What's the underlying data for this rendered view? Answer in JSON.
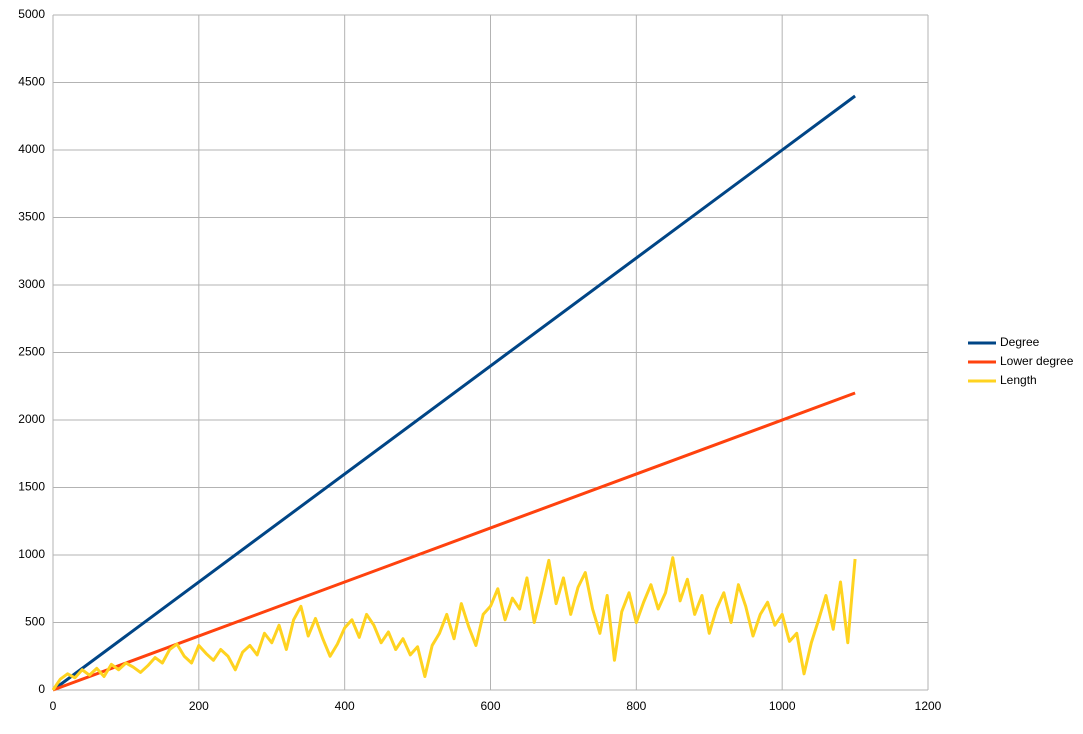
{
  "chart_data": {
    "type": "line",
    "xlim": [
      0,
      1200
    ],
    "xticks": [
      0,
      200,
      400,
      600,
      800,
      1000,
      1200
    ],
    "ylim": [
      0,
      5000
    ],
    "yticks": [
      0,
      500,
      1000,
      1500,
      2000,
      2500,
      3000,
      3500,
      4000,
      4500,
      5000
    ],
    "grid": true,
    "legend": "right",
    "series": [
      {
        "name": "Degree",
        "color": "#004586",
        "x": [
          0,
          1100
        ],
        "values": [
          0,
          4400
        ]
      },
      {
        "name": "Lower degree",
        "color": "#ff420e",
        "x": [
          0,
          1100
        ],
        "values": [
          0,
          2200
        ]
      },
      {
        "name": "Length",
        "color": "#ffd320",
        "x": [
          0,
          10,
          20,
          30,
          40,
          50,
          60,
          70,
          80,
          90,
          100,
          110,
          120,
          130,
          140,
          150,
          160,
          170,
          180,
          190,
          200,
          210,
          220,
          230,
          240,
          250,
          260,
          270,
          280,
          290,
          300,
          310,
          320,
          330,
          340,
          350,
          360,
          370,
          380,
          390,
          400,
          410,
          420,
          430,
          440,
          450,
          460,
          470,
          480,
          490,
          500,
          510,
          520,
          530,
          540,
          550,
          560,
          570,
          580,
          590,
          600,
          610,
          620,
          630,
          640,
          650,
          660,
          670,
          680,
          690,
          700,
          710,
          720,
          730,
          740,
          750,
          760,
          770,
          780,
          790,
          800,
          810,
          820,
          830,
          840,
          850,
          860,
          870,
          880,
          890,
          900,
          910,
          920,
          930,
          940,
          950,
          960,
          970,
          980,
          990,
          1000,
          1010,
          1020,
          1030,
          1040,
          1050,
          1060,
          1070,
          1080,
          1090,
          1100
        ],
        "values": [
          0,
          80,
          120,
          90,
          150,
          110,
          160,
          100,
          190,
          150,
          200,
          170,
          130,
          180,
          240,
          200,
          300,
          340,
          250,
          200,
          330,
          270,
          220,
          300,
          250,
          150,
          280,
          330,
          260,
          420,
          350,
          480,
          300,
          520,
          620,
          400,
          530,
          380,
          250,
          340,
          460,
          520,
          390,
          560,
          480,
          350,
          430,
          300,
          380,
          260,
          320,
          100,
          330,
          420,
          560,
          380,
          640,
          470,
          330,
          560,
          620,
          750,
          520,
          680,
          600,
          830,
          500,
          720,
          960,
          640,
          830,
          560,
          760,
          870,
          600,
          420,
          700,
          220,
          580,
          720,
          500,
          650,
          780,
          600,
          720,
          980,
          660,
          820,
          560,
          700,
          420,
          600,
          720,
          500,
          780,
          620,
          400,
          560,
          650,
          480,
          560,
          360,
          420,
          120,
          350,
          520,
          700,
          450,
          800,
          350,
          970
        ]
      }
    ]
  }
}
